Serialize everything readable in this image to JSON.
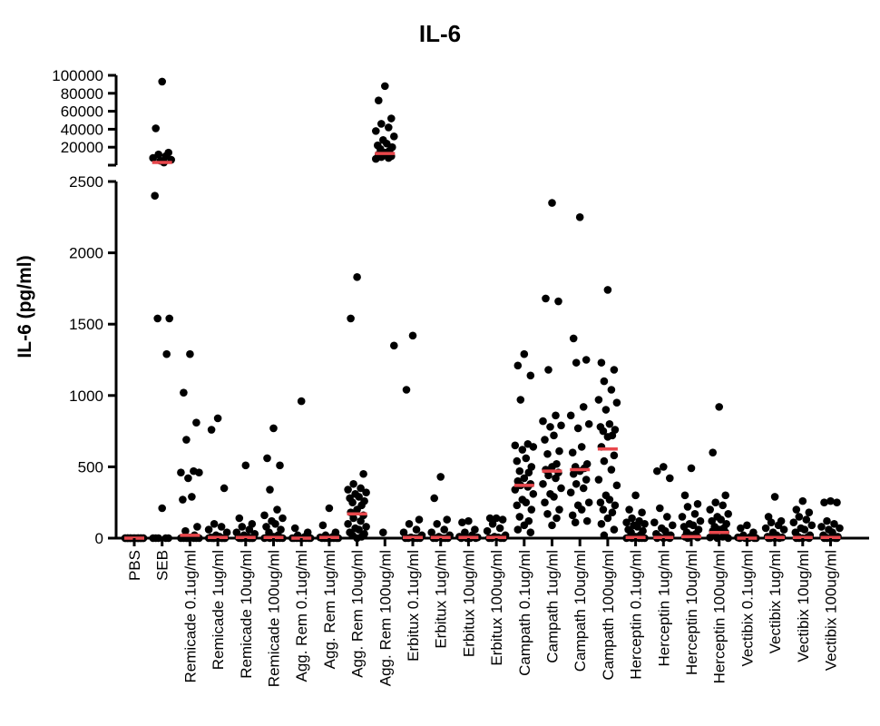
{
  "chart_data": {
    "type": "scatter",
    "title": "IL-6",
    "ylabel": "IL-6 (pg/ml)",
    "xlabel": "",
    "y_axis_break": {
      "lower_range": [
        0,
        2500
      ],
      "upper_range": [
        0,
        100000
      ]
    },
    "lower_ticks": [
      "0",
      "500",
      "1000",
      "1500",
      "2000",
      "2500"
    ],
    "upper_ticks": [
      "20000",
      "40000",
      "60000",
      "80000",
      "100000"
    ],
    "colors": {
      "point": "#000000",
      "median": "#e8474c",
      "axis": "#000000"
    },
    "categories": [
      "PBS",
      "SEB",
      "Remicade 0.1ug/ml",
      "Remicade 1ug/ml",
      "Remicade 10ug/ml",
      "Remicade 100ug/ml",
      "Agg. Rem 0.1ug/ml",
      "Agg. Rem 1ug/ml",
      "Agg. Rem 10ug/ml",
      "Agg. Rem 100ug/ml",
      "Erbitux 0.1ug/ml",
      "Erbitux 1ug/ml",
      "Erbitux 10ug/ml",
      "Erbitux 100ug/ml",
      "Campath 0.1ug/ml",
      "Campath 1ug/ml",
      "Campath 10ug/ml",
      "Campath 100ug/ml",
      "Herceptin 0.1ug/ml",
      "Herceptin 1ug/ml",
      "Herceptin 10ug/ml",
      "Herceptin 100ug/ml",
      "Vectibix 0.1ug/ml",
      "Vectibix 1ug/ml",
      "Vectibix 10ug/ml",
      "Vectibix 100ug/ml"
    ],
    "medians": [
      0,
      3000,
      20,
      5,
      5,
      5,
      0,
      5,
      170,
      13000,
      5,
      5,
      5,
      5,
      370,
      470,
      480,
      625,
      5,
      5,
      10,
      40,
      0,
      5,
      5,
      5
    ],
    "points": [
      [
        0,
        0,
        0,
        0,
        0,
        0,
        0,
        0,
        0,
        0,
        0,
        0,
        0,
        0,
        0,
        0,
        0,
        0,
        0,
        0
      ],
      [
        93000,
        41000,
        14000,
        12000,
        10000,
        8000,
        6000,
        5000,
        3000,
        2400,
        1540,
        1540,
        1290,
        210,
        0,
        0,
        0,
        0,
        0
      ],
      [
        1290,
        1020,
        810,
        690,
        470,
        460,
        460,
        420,
        290,
        270,
        80,
        50,
        20,
        5,
        0,
        0,
        0,
        0,
        0,
        0,
        0
      ],
      [
        840,
        760,
        350,
        100,
        80,
        60,
        40,
        20,
        10,
        5,
        0,
        0,
        0,
        0,
        0,
        0,
        0,
        0,
        0
      ],
      [
        510,
        140,
        100,
        80,
        60,
        40,
        30,
        20,
        10,
        5,
        0,
        0,
        0,
        0,
        0,
        0,
        0,
        0
      ],
      [
        770,
        560,
        510,
        340,
        200,
        160,
        140,
        120,
        100,
        80,
        60,
        40,
        20,
        10,
        5,
        0,
        0,
        0,
        0,
        0
      ],
      [
        960,
        70,
        40,
        20,
        10,
        0,
        0,
        0,
        0,
        0,
        0,
        0,
        0
      ],
      [
        210,
        90,
        40,
        20,
        10,
        5,
        0,
        0,
        0,
        0,
        0,
        0,
        0,
        0
      ],
      [
        1830,
        1540,
        450,
        380,
        350,
        340,
        320,
        310,
        290,
        280,
        260,
        250,
        230,
        200,
        180,
        160,
        140,
        120,
        100,
        80,
        70,
        60,
        40,
        30,
        20,
        10,
        0
      ],
      [
        88000,
        72000,
        52000,
        46000,
        42000,
        38000,
        32000,
        28000,
        24000,
        22000,
        20000,
        18000,
        16000,
        14000,
        12000,
        10000,
        9000,
        8000,
        7000,
        1350,
        40
      ],
      [
        1420,
        1040,
        130,
        100,
        60,
        40,
        20,
        5,
        0,
        0,
        0,
        0,
        0
      ],
      [
        430,
        280,
        130,
        100,
        60,
        40,
        20,
        10,
        0,
        0,
        0,
        0,
        0
      ],
      [
        120,
        110,
        60,
        40,
        20,
        10,
        5,
        0,
        0,
        0,
        0
      ],
      [
        140,
        140,
        130,
        100,
        70,
        50,
        20,
        10,
        5,
        0,
        0,
        0,
        0
      ],
      [
        1290,
        1210,
        1140,
        970,
        660,
        650,
        640,
        620,
        560,
        540,
        500,
        470,
        460,
        420,
        400,
        380,
        370,
        360,
        340,
        310,
        270,
        250,
        230,
        200,
        150,
        120,
        90,
        60,
        40
      ],
      [
        2350,
        1680,
        1660,
        1180,
        860,
        820,
        790,
        780,
        720,
        690,
        610,
        590,
        520,
        500,
        480,
        460,
        440,
        420,
        380,
        350,
        310,
        290,
        250,
        200,
        170,
        140,
        90
      ],
      [
        2250,
        1400,
        1250,
        1230,
        920,
        860,
        800,
        770,
        640,
        600,
        520,
        500,
        490,
        470,
        450,
        410,
        380,
        350,
        320,
        250,
        230,
        200,
        160,
        120,
        110
      ],
      [
        1740,
        1230,
        1180,
        1100,
        1040,
        970,
        950,
        900,
        800,
        780,
        760,
        750,
        720,
        710,
        640,
        580,
        540,
        480,
        410,
        370,
        300,
        270,
        250,
        230,
        200,
        180,
        140,
        100,
        60,
        20
      ],
      [
        300,
        200,
        180,
        140,
        120,
        110,
        100,
        90,
        80,
        60,
        50,
        40,
        20,
        10,
        5,
        0,
        0,
        0,
        0,
        0
      ],
      [
        500,
        470,
        420,
        210,
        150,
        110,
        90,
        70,
        50,
        30,
        20,
        10,
        5,
        0,
        0,
        0
      ],
      [
        490,
        300,
        240,
        220,
        170,
        150,
        120,
        100,
        90,
        80,
        60,
        40,
        30,
        20,
        10,
        5,
        0
      ],
      [
        920,
        600,
        300,
        250,
        230,
        200,
        170,
        150,
        130,
        120,
        100,
        80,
        70,
        60,
        50,
        40,
        20,
        10,
        5,
        0,
        0
      ],
      [
        90,
        70,
        40,
        20,
        10,
        5,
        0,
        0,
        0,
        0,
        0
      ],
      [
        290,
        150,
        120,
        110,
        90,
        70,
        60,
        40,
        20,
        10,
        5,
        0,
        0,
        0,
        0
      ],
      [
        260,
        200,
        180,
        150,
        130,
        110,
        90,
        70,
        60,
        40,
        20,
        10,
        5,
        0,
        0,
        0,
        0
      ],
      [
        260,
        250,
        250,
        120,
        100,
        80,
        70,
        60,
        40,
        20,
        10,
        5,
        0,
        0,
        0,
        0,
        0
      ]
    ]
  }
}
